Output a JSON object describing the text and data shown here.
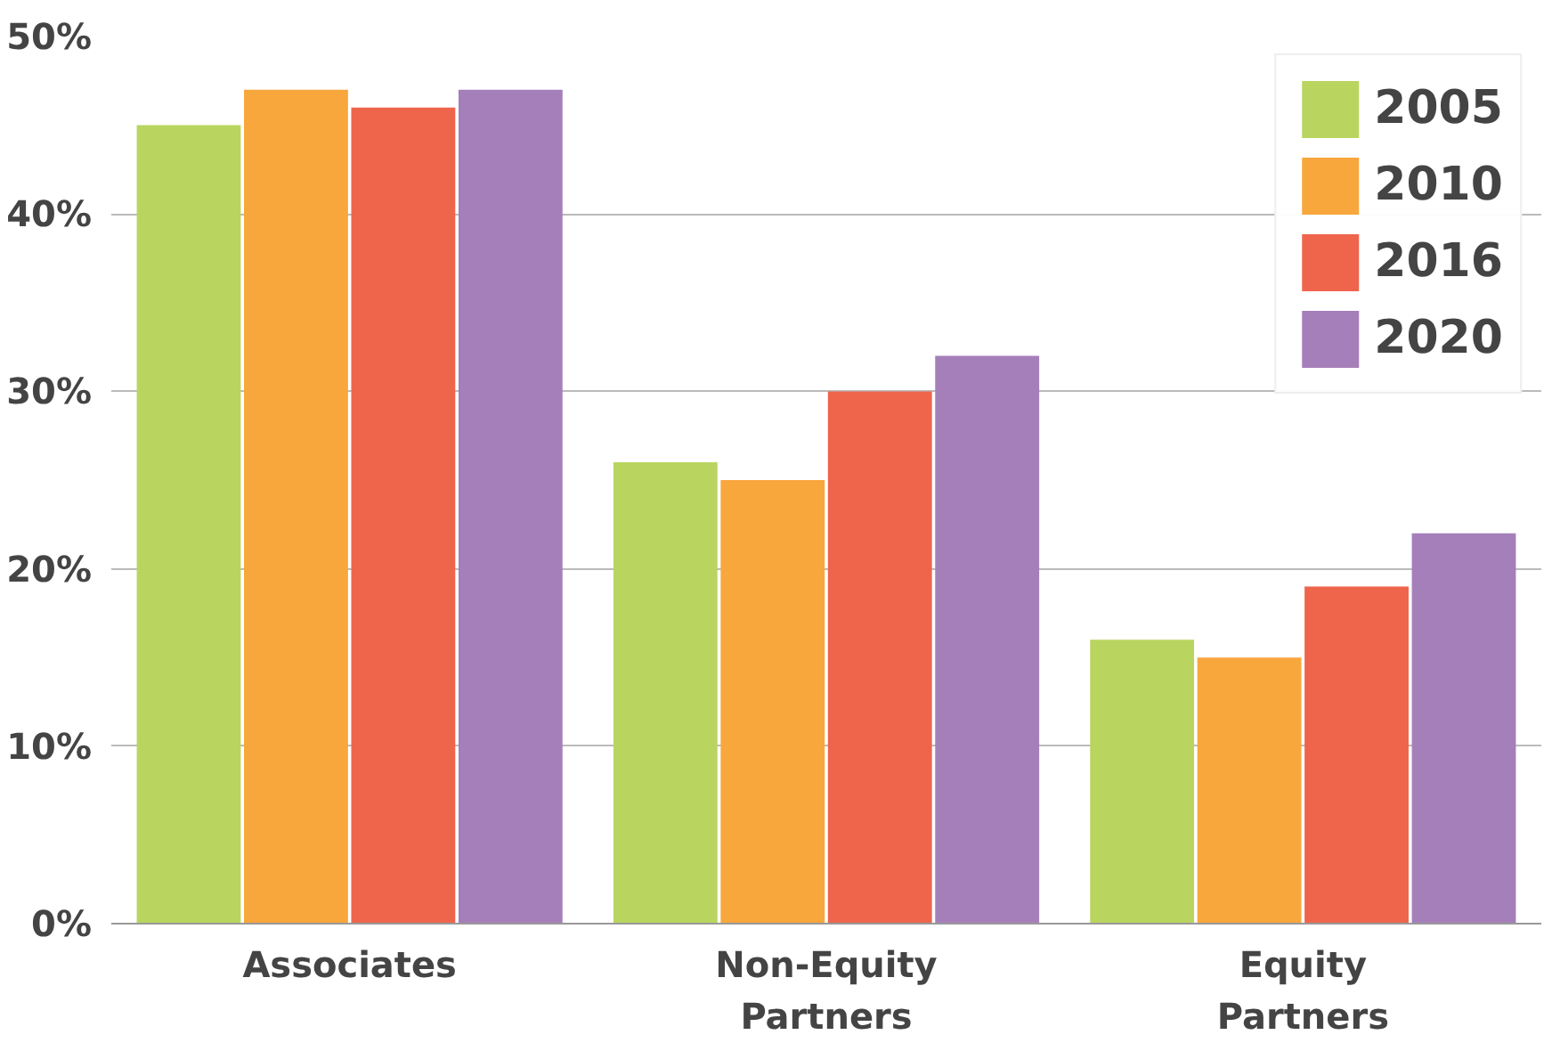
{
  "chart_data": {
    "type": "bar",
    "categories": [
      "Associates",
      "Non-Equity\nPartners",
      "Equity\nPartners"
    ],
    "series": [
      {
        "name": "2005",
        "color": "#b9d55f",
        "values": [
          45,
          26,
          16
        ]
      },
      {
        "name": "2010",
        "color": "#f8a73d",
        "values": [
          47,
          25,
          15
        ]
      },
      {
        "name": "2016",
        "color": "#ee654c",
        "values": [
          46,
          30,
          19
        ]
      },
      {
        "name": "2020",
        "color": "#a57fba",
        "values": [
          47,
          32,
          22
        ]
      }
    ],
    "ylim": [
      0,
      50
    ],
    "yticks": [
      {
        "value": 0,
        "label": "0%"
      },
      {
        "value": 10,
        "label": "10%"
      },
      {
        "value": 20,
        "label": "20%"
      },
      {
        "value": 30,
        "label": "30%"
      },
      {
        "value": 40,
        "label": "40%"
      },
      {
        "value": 50,
        "label": "50%"
      }
    ],
    "grid": "y",
    "legend": "top right"
  }
}
